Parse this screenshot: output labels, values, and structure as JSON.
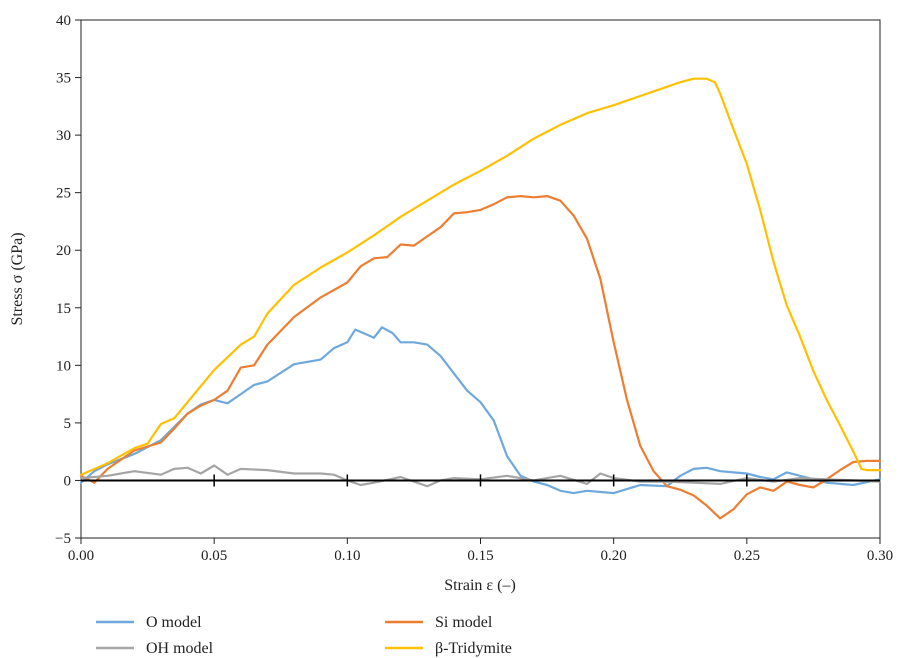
{
  "chart_data": {
    "type": "line",
    "xlabel": "Strain ε (–)",
    "ylabel": "Stress σ (GPa)",
    "xlim": [
      0,
      0.3
    ],
    "ylim": [
      -5,
      40
    ],
    "x_ticks": [
      "0.00",
      "0.05",
      "0.10",
      "0.15",
      "0.20",
      "0.25",
      "0.30"
    ],
    "y_ticks": [
      "−5",
      "0",
      "5",
      "10",
      "15",
      "20",
      "25",
      "30",
      "35",
      "40"
    ],
    "grid": false,
    "legend_position": "bottom",
    "series": [
      {
        "name": "O model",
        "color": "#6fa8dc",
        "x": [
          0.0,
          0.005,
          0.01,
          0.02,
          0.03,
          0.04,
          0.045,
          0.05,
          0.055,
          0.06,
          0.065,
          0.07,
          0.08,
          0.09,
          0.095,
          0.1,
          0.103,
          0.107,
          0.11,
          0.113,
          0.117,
          0.12,
          0.125,
          0.13,
          0.135,
          0.14,
          0.145,
          0.15,
          0.155,
          0.16,
          0.165,
          0.17,
          0.175,
          0.18,
          0.185,
          0.19,
          0.2,
          0.21,
          0.22,
          0.225,
          0.23,
          0.235,
          0.24,
          0.245,
          0.25,
          0.255,
          0.26,
          0.265,
          0.27,
          0.28,
          0.29,
          0.3
        ],
        "y": [
          -0.2,
          0.8,
          1.4,
          2.3,
          3.5,
          5.8,
          6.6,
          7.0,
          6.7,
          7.5,
          8.3,
          8.6,
          10.1,
          10.5,
          11.5,
          12.0,
          13.1,
          12.7,
          12.4,
          13.3,
          12.8,
          12.0,
          12.0,
          11.8,
          10.8,
          9.3,
          7.8,
          6.8,
          5.2,
          2.1,
          0.4,
          -0.1,
          -0.4,
          -0.9,
          -1.1,
          -0.9,
          -1.1,
          -0.4,
          -0.5,
          0.4,
          1.0,
          1.1,
          0.8,
          0.7,
          0.6,
          0.3,
          0.1,
          0.7,
          0.4,
          -0.2,
          -0.4,
          0.1
        ]
      },
      {
        "name": "Si model",
        "color": "#ed7d31",
        "x": [
          0.0,
          0.005,
          0.01,
          0.02,
          0.03,
          0.035,
          0.04,
          0.045,
          0.05,
          0.055,
          0.06,
          0.065,
          0.07,
          0.08,
          0.09,
          0.1,
          0.105,
          0.11,
          0.115,
          0.12,
          0.125,
          0.13,
          0.135,
          0.14,
          0.145,
          0.15,
          0.155,
          0.16,
          0.165,
          0.17,
          0.175,
          0.18,
          0.185,
          0.19,
          0.195,
          0.2,
          0.205,
          0.21,
          0.215,
          0.22,
          0.225,
          0.23,
          0.235,
          0.24,
          0.245,
          0.25,
          0.255,
          0.26,
          0.265,
          0.27,
          0.275,
          0.28,
          0.285,
          0.29,
          0.295,
          0.3
        ],
        "y": [
          0.4,
          -0.2,
          1.0,
          2.6,
          3.3,
          4.5,
          5.8,
          6.5,
          7.0,
          7.8,
          9.8,
          10.0,
          11.8,
          14.2,
          15.9,
          17.2,
          18.6,
          19.3,
          19.4,
          20.5,
          20.4,
          21.2,
          22.0,
          23.2,
          23.3,
          23.5,
          24.0,
          24.6,
          24.7,
          24.6,
          24.7,
          24.3,
          23.0,
          21.0,
          17.5,
          12.0,
          7.0,
          3.0,
          0.8,
          -0.5,
          -0.8,
          -1.3,
          -2.2,
          -3.3,
          -2.5,
          -1.2,
          -0.6,
          -0.9,
          -0.1,
          -0.4,
          -0.6,
          0.1,
          0.9,
          1.6,
          1.7,
          1.7
        ]
      },
      {
        "name": "OH model",
        "color": "#a5a5a5",
        "x": [
          0.0,
          0.01,
          0.02,
          0.03,
          0.035,
          0.04,
          0.045,
          0.05,
          0.055,
          0.06,
          0.07,
          0.08,
          0.09,
          0.095,
          0.1,
          0.105,
          0.11,
          0.12,
          0.13,
          0.135,
          0.14,
          0.15,
          0.16,
          0.17,
          0.175,
          0.18,
          0.19,
          0.195,
          0.2,
          0.21,
          0.22,
          0.23,
          0.24,
          0.25,
          0.26,
          0.27,
          0.28,
          0.29,
          0.3
        ],
        "y": [
          0.2,
          0.4,
          0.8,
          0.5,
          1.0,
          1.1,
          0.6,
          1.3,
          0.5,
          1.0,
          0.9,
          0.6,
          0.6,
          0.5,
          0.0,
          -0.4,
          -0.2,
          0.3,
          -0.5,
          0.0,
          0.2,
          0.1,
          0.4,
          0.0,
          0.2,
          0.4,
          -0.3,
          0.6,
          0.2,
          -0.1,
          -0.1,
          -0.2,
          -0.3,
          0.2,
          -0.1,
          0.2,
          0.1,
          0.0,
          -0.1
        ]
      },
      {
        "name": "β-Tridymite",
        "color": "#ffc000",
        "x": [
          0.0,
          0.01,
          0.02,
          0.025,
          0.03,
          0.035,
          0.04,
          0.05,
          0.06,
          0.065,
          0.07,
          0.08,
          0.09,
          0.1,
          0.11,
          0.12,
          0.13,
          0.14,
          0.15,
          0.16,
          0.17,
          0.18,
          0.19,
          0.2,
          0.21,
          0.22,
          0.225,
          0.23,
          0.235,
          0.238,
          0.24,
          0.245,
          0.25,
          0.255,
          0.26,
          0.265,
          0.27,
          0.275,
          0.28,
          0.285,
          0.29,
          0.293,
          0.295,
          0.3
        ],
        "y": [
          0.5,
          1.5,
          2.8,
          3.2,
          4.9,
          5.4,
          6.8,
          9.6,
          11.8,
          12.5,
          14.5,
          17.0,
          18.5,
          19.8,
          21.3,
          22.9,
          24.3,
          25.7,
          26.9,
          28.2,
          29.7,
          30.9,
          31.9,
          32.6,
          33.4,
          34.2,
          34.6,
          34.9,
          34.9,
          34.6,
          33.6,
          30.5,
          27.5,
          23.5,
          19.0,
          15.2,
          12.5,
          9.5,
          7.0,
          4.8,
          2.5,
          1.0,
          0.9,
          0.9
        ]
      }
    ]
  }
}
